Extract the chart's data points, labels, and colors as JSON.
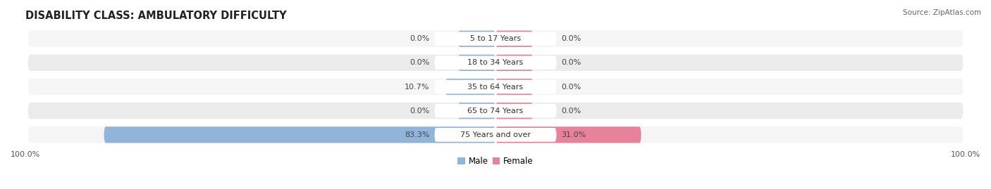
{
  "title": "DISABILITY CLASS: AMBULATORY DIFFICULTY",
  "source": "Source: ZipAtlas.com",
  "categories": [
    "5 to 17 Years",
    "18 to 34 Years",
    "35 to 64 Years",
    "65 to 74 Years",
    "75 Years and over"
  ],
  "male_values": [
    0.0,
    0.0,
    10.7,
    0.0,
    83.3
  ],
  "female_values": [
    0.0,
    0.0,
    0.0,
    0.0,
    31.0
  ],
  "male_color": "#92b4d9",
  "female_color": "#e8829a",
  "bar_bg_color": "#ebebeb",
  "bar_bg_color_alt": "#f5f5f5",
  "max_value": 100.0,
  "min_stub": 8.0,
  "title_fontsize": 10.5,
  "label_fontsize": 8.0,
  "value_fontsize": 8.0,
  "tick_fontsize": 8.0,
  "legend_fontsize": 8.5,
  "background_color": "#ffffff"
}
